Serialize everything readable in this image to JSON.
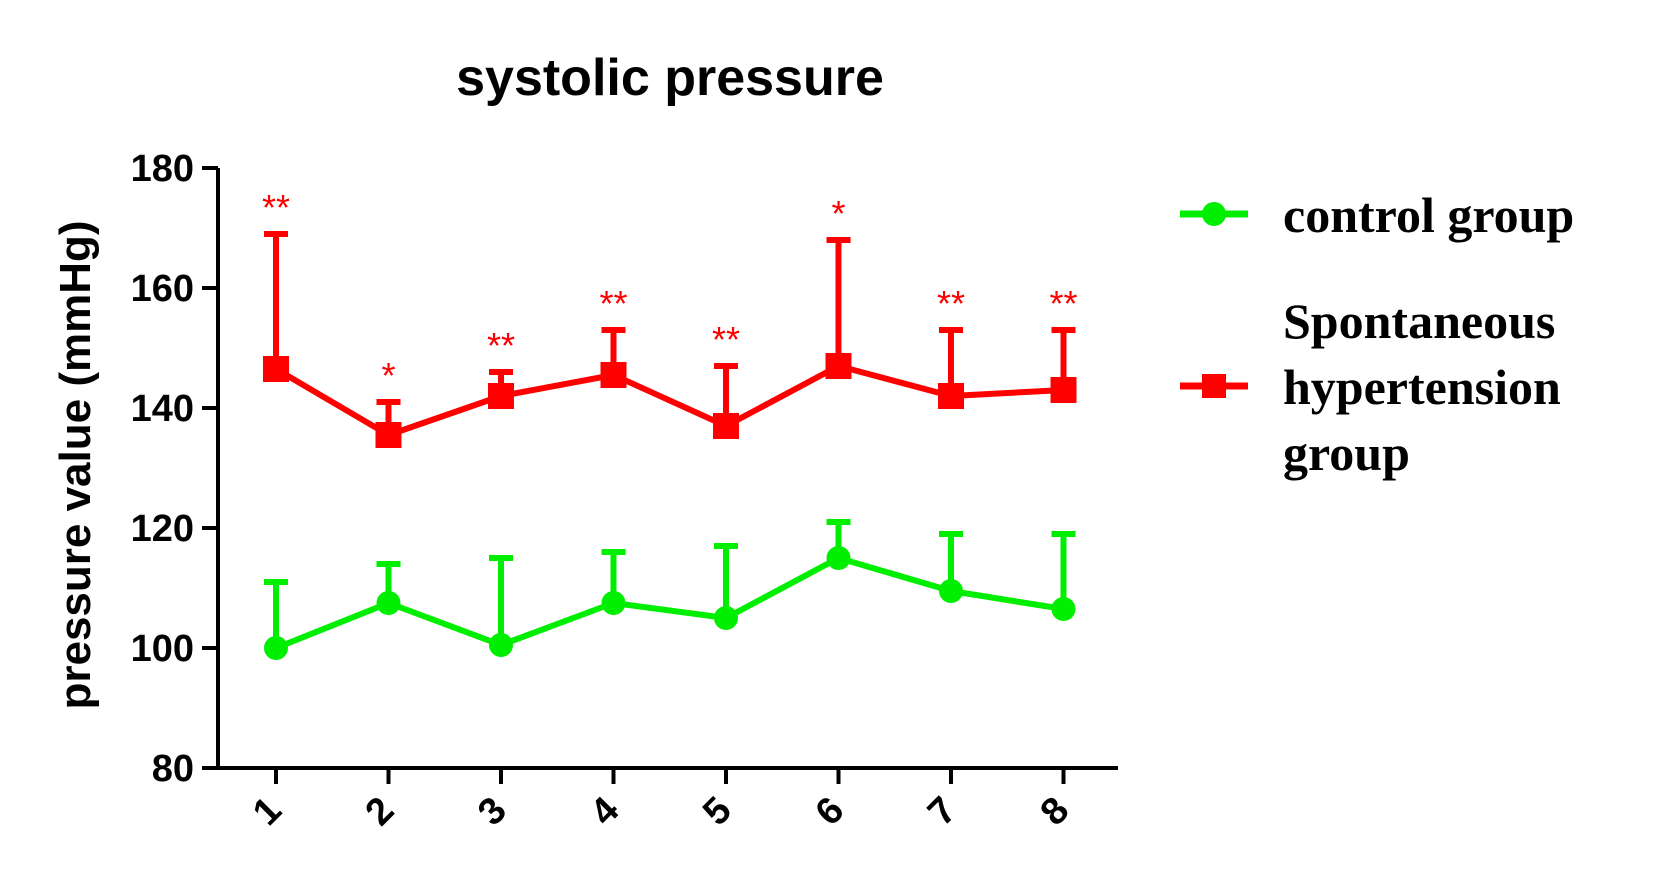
{
  "colors": {
    "control": "#00ee00",
    "hypertension": "#ff0000",
    "axis": "#000000"
  },
  "chart_data": {
    "type": "line",
    "title": "systolic pressure",
    "xlabel": "",
    "ylabel": "pressure value (mmHg)",
    "categories": [
      "1",
      "2",
      "3",
      "4",
      "5",
      "6",
      "7",
      "8"
    ],
    "ylim": [
      80,
      180
    ],
    "yticks": [
      "80",
      "100",
      "120",
      "140",
      "160",
      "180"
    ],
    "grid": false,
    "legend_position": "right",
    "series": [
      {
        "name": "control group",
        "marker": "circle",
        "color": "#00ee00",
        "values": [
          100,
          107.5,
          100.5,
          107.5,
          105,
          115,
          109.5,
          106.5
        ],
        "error_upper": [
          111,
          114,
          115,
          116,
          117,
          121,
          119,
          119
        ]
      },
      {
        "name": "Spontaneous hypertension group",
        "legend_lines": [
          "Spontaneous",
          "hypertension",
          "group"
        ],
        "marker": "square",
        "color": "#ff0000",
        "values": [
          146.5,
          135.5,
          142,
          145.5,
          137,
          147,
          142,
          143
        ],
        "error_upper": [
          169,
          141,
          146,
          153,
          147,
          168,
          153,
          153
        ],
        "significance": [
          "**",
          "*",
          "**",
          "**",
          "**",
          "*",
          "**",
          "**"
        ]
      }
    ]
  }
}
